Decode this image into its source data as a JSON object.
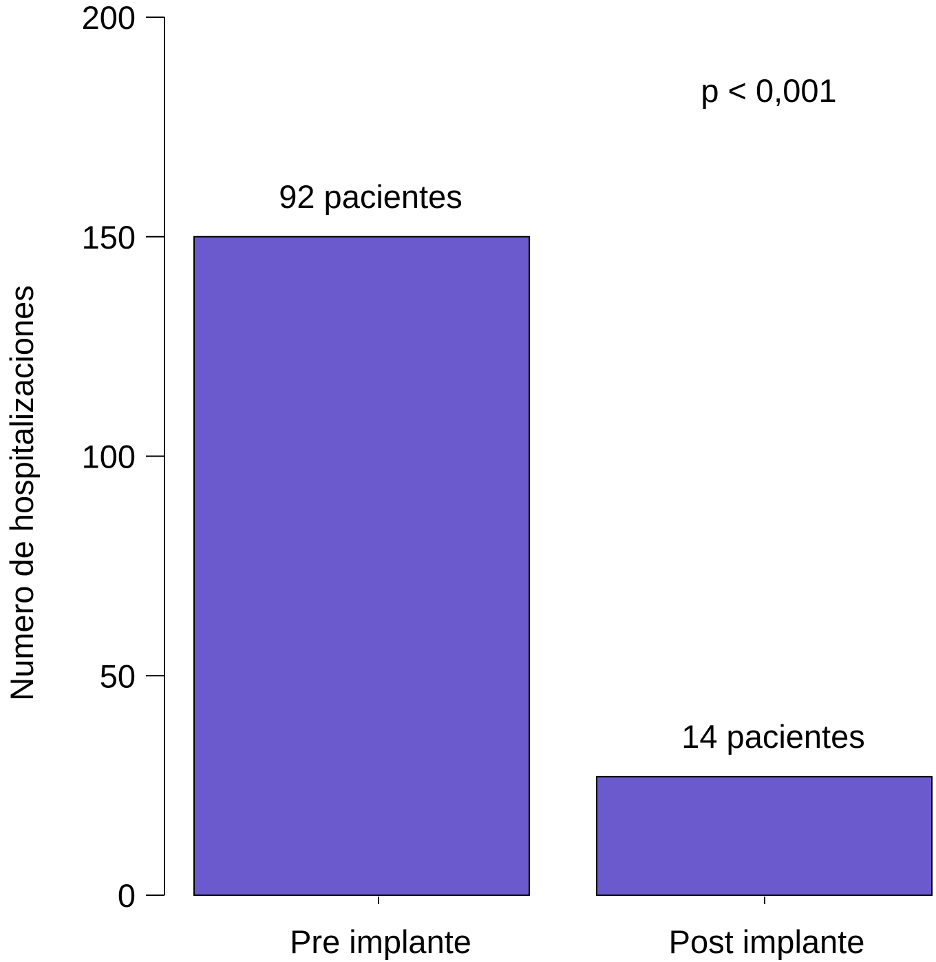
{
  "chart_data": {
    "type": "bar",
    "categories": [
      "Pre implante",
      "Post implante"
    ],
    "values": [
      150,
      27
    ],
    "bar_labels": [
      "92 pacientes",
      "14 pacientes"
    ],
    "ylabel": "Numero de hospitalizaciones",
    "xlabel": "",
    "ylim": [
      0,
      200
    ],
    "yticks": [
      0,
      50,
      100,
      150,
      200
    ],
    "annotation": "p < 0,001",
    "grid": false,
    "bar_color": "#6a5acd"
  }
}
